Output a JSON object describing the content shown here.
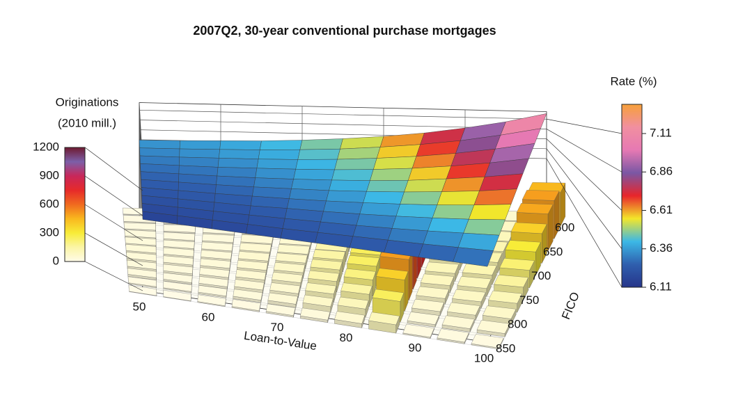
{
  "chart_data": {
    "type": "surface3d",
    "title": "2007Q2, 30-year conventional purchase mortgages",
    "x_label": "Loan-to-Value",
    "y_label": "FICO",
    "xlim": [
      50,
      100
    ],
    "xticks": [
      50,
      60,
      70,
      80,
      90,
      100
    ],
    "ylim": [
      600,
      850
    ],
    "yticks": [
      600,
      650,
      700,
      750,
      800,
      850
    ],
    "x": [
      50,
      55,
      60,
      65,
      70,
      75,
      80,
      85,
      90,
      95,
      100
    ],
    "y": [
      600,
      625,
      650,
      675,
      700,
      725,
      750,
      775,
      800,
      825,
      850
    ],
    "rate": {
      "label": "Rate (%)",
      "lim": [
        6.11,
        7.3
      ],
      "ticks": [
        6.11,
        6.36,
        6.61,
        6.86,
        7.11
      ],
      "colors": [
        "#26358a",
        "#2f5fae",
        "#3cb8e6",
        "#f3e62a",
        "#e8252b",
        "#7a57a4",
        "#e679b3",
        "#f18fa0",
        "#f7a03a"
      ],
      "values": [
        [
          6.35,
          6.36,
          6.38,
          6.4,
          6.44,
          6.5,
          6.58,
          6.69,
          6.84,
          7.02,
          7.25
        ],
        [
          6.33,
          6.34,
          6.36,
          6.38,
          6.42,
          6.47,
          6.55,
          6.65,
          6.78,
          6.95,
          7.15
        ],
        [
          6.31,
          6.32,
          6.34,
          6.36,
          6.39,
          6.44,
          6.51,
          6.6,
          6.72,
          6.87,
          7.05
        ],
        [
          6.29,
          6.3,
          6.31,
          6.34,
          6.37,
          6.41,
          6.47,
          6.55,
          6.66,
          6.79,
          6.95
        ],
        [
          6.27,
          6.28,
          6.29,
          6.31,
          6.34,
          6.38,
          6.43,
          6.5,
          6.6,
          6.71,
          6.85
        ],
        [
          6.25,
          6.26,
          6.27,
          6.29,
          6.32,
          6.35,
          6.4,
          6.46,
          6.54,
          6.63,
          6.75
        ],
        [
          6.23,
          6.24,
          6.25,
          6.27,
          6.29,
          6.32,
          6.36,
          6.41,
          6.47,
          6.55,
          6.65
        ],
        [
          6.21,
          6.22,
          6.23,
          6.24,
          6.27,
          6.29,
          6.32,
          6.36,
          6.41,
          6.47,
          6.55
        ],
        [
          6.19,
          6.2,
          6.21,
          6.22,
          6.24,
          6.26,
          6.28,
          6.31,
          6.35,
          6.4,
          6.45
        ],
        [
          6.17,
          6.18,
          6.19,
          6.2,
          6.21,
          6.23,
          6.25,
          6.27,
          6.29,
          6.32,
          6.35
        ],
        [
          6.15,
          6.16,
          6.17,
          6.18,
          6.19,
          6.2,
          6.21,
          6.22,
          6.23,
          6.24,
          6.25
        ]
      ]
    },
    "originations": {
      "label": [
        "Originations",
        "(2010 mill.)"
      ],
      "lim": [
        0,
        1200
      ],
      "ticks": [
        0,
        300,
        600,
        900,
        1200
      ],
      "colors": [
        "#fffbe8",
        "#fbf5a6",
        "#f8ec38",
        "#f9b81e",
        "#f06a1f",
        "#e62a2a",
        "#c8275a",
        "#7c5fa8",
        "#6e1a30"
      ],
      "values": [
        [
          10,
          5,
          10,
          15,
          20,
          40,
          60,
          300,
          40,
          60,
          450
        ],
        [
          15,
          10,
          15,
          20,
          30,
          60,
          90,
          450,
          60,
          80,
          500
        ],
        [
          20,
          15,
          20,
          30,
          40,
          80,
          130,
          600,
          80,
          100,
          480
        ],
        [
          25,
          20,
          25,
          40,
          50,
          110,
          180,
          700,
          100,
          120,
          380
        ],
        [
          30,
          25,
          30,
          50,
          60,
          130,
          220,
          750,
          110,
          130,
          300
        ],
        [
          35,
          30,
          35,
          55,
          70,
          150,
          250,
          720,
          100,
          120,
          220
        ],
        [
          35,
          30,
          35,
          55,
          70,
          150,
          240,
          650,
          90,
          100,
          160
        ],
        [
          30,
          25,
          30,
          50,
          65,
          130,
          200,
          500,
          70,
          80,
          110
        ],
        [
          25,
          20,
          25,
          40,
          50,
          100,
          150,
          380,
          50,
          60,
          70
        ],
        [
          15,
          15,
          20,
          30,
          40,
          70,
          100,
          250,
          30,
          40,
          40
        ],
        [
          5,
          5,
          10,
          15,
          20,
          30,
          50,
          100,
          15,
          20,
          15
        ]
      ]
    }
  }
}
